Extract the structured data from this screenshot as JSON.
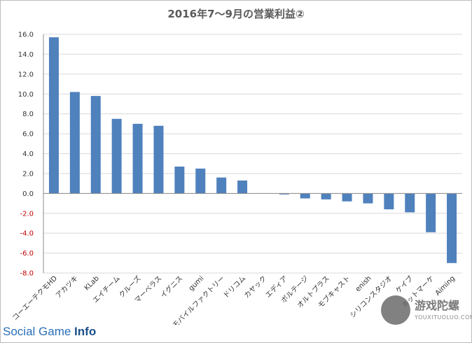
{
  "chart_data": {
    "type": "bar",
    "title": "2016年7～9月の営業利益②",
    "categories": [
      "コーエーテクモHD",
      "アカツキ",
      "KLab",
      "エイチーム",
      "クルーズ",
      "マーベラス",
      "イグニス",
      "gumi",
      "モバイルファクトリー",
      "ドリコム",
      "カヤック",
      "エディア",
      "ボルテージ",
      "オルトプラス",
      "モブキャスト",
      "enish",
      "シリコンスタジオ",
      "ケイブ",
      "ネットマーケ",
      "Aiming"
    ],
    "values": [
      15.7,
      10.2,
      9.8,
      7.5,
      7.0,
      6.8,
      2.7,
      2.5,
      1.6,
      1.3,
      0.0,
      -0.1,
      -0.5,
      -0.6,
      -0.8,
      -1.0,
      -1.6,
      -1.9,
      -3.9,
      -7.0
    ],
    "ylim": [
      -8.0,
      16.0
    ],
    "ytick_labels": [
      "16.0",
      "14.0",
      "12.0",
      "10.0",
      "8.0",
      "6.0",
      "4.0",
      "2.0",
      "0.0",
      "-2.0",
      "-4.0",
      "-6.0",
      "-8.0"
    ],
    "grid": true,
    "bar_color": "#4f81bd",
    "negative_tick_color": "#c00000"
  },
  "footer": {
    "brand_prefix": "Social Game ",
    "brand_suffix": "Info"
  },
  "watermark": {
    "text_cn": "游戏陀螺",
    "text_en": "YOUXITUOLUO.COM"
  }
}
